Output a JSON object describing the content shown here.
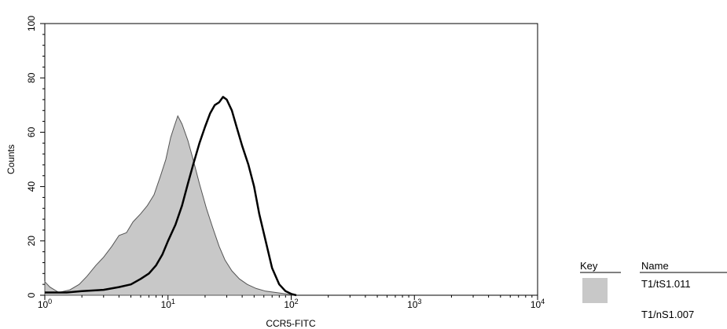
{
  "chart_data": {
    "type": "area",
    "title": "",
    "xlabel": "CCR5-FITC",
    "ylabel": "Counts",
    "x_scale": "log",
    "xlim": [
      1,
      10000
    ],
    "ylim": [
      0,
      100
    ],
    "x_ticks": [
      {
        "value": 1,
        "base": "10",
        "exp": "0"
      },
      {
        "value": 10,
        "base": "10",
        "exp": "1"
      },
      {
        "value": 100,
        "base": "10",
        "exp": "2"
      },
      {
        "value": 1000,
        "base": "10",
        "exp": "3"
      },
      {
        "value": 10000,
        "base": "10",
        "exp": "4"
      }
    ],
    "y_ticks": [
      0,
      20,
      40,
      60,
      80,
      100
    ],
    "series": [
      {
        "name": "T1/tS1.011",
        "style": "filled",
        "fill": "#c8c8c8",
        "stroke": "#555555",
        "x": [
          1,
          1.1,
          1.3,
          1.6,
          1.9,
          2.2,
          2.6,
          3.0,
          3.5,
          4.0,
          4.6,
          5.2,
          6.0,
          6.8,
          7.7,
          8.7,
          9.6,
          10.5,
          11.2,
          12.0,
          13.0,
          14.5,
          16.0,
          18.0,
          20.5,
          23.0,
          26.0,
          29.0,
          33.0,
          38.0,
          44.0,
          52.0,
          62.0,
          75.0,
          90.0,
          105.0
        ],
        "y": [
          5,
          3,
          1,
          2,
          4,
          7,
          11,
          14,
          18,
          22,
          23,
          27,
          30,
          33,
          37,
          44,
          50,
          58,
          62,
          66,
          63,
          57,
          50,
          41,
          32,
          25,
          18,
          13,
          9,
          6,
          4,
          2.5,
          1.5,
          1,
          0.5,
          0
        ]
      },
      {
        "name": "T1/nS1.007",
        "style": "line",
        "stroke": "#000000",
        "x": [
          1,
          1.5,
          2.0,
          3.0,
          4.0,
          5.0,
          6.0,
          7.0,
          8.0,
          9.0,
          10.0,
          11.5,
          13.0,
          14.5,
          16.0,
          18.0,
          20.0,
          22.0,
          24.0,
          26.0,
          28.0,
          30.0,
          33.0,
          36.0,
          40.0,
          45.0,
          50.0,
          55.0,
          62.0,
          70.0,
          80.0,
          90.0,
          100.0,
          110.0
        ],
        "y": [
          1,
          1,
          1.5,
          2,
          3,
          4,
          6,
          8,
          11,
          15,
          20,
          26,
          33,
          41,
          48,
          56,
          62,
          67,
          70,
          71,
          73,
          72,
          68,
          62,
          55,
          48,
          40,
          30,
          20,
          10,
          4,
          1.5,
          0.5,
          0
        ]
      }
    ]
  },
  "legend": {
    "key_header": "Key",
    "name_header": "Name",
    "items": [
      {
        "name": "T1/tS1.011",
        "swatch": "filled"
      },
      {
        "name": "T1/nS1.007",
        "swatch": "none"
      }
    ]
  }
}
